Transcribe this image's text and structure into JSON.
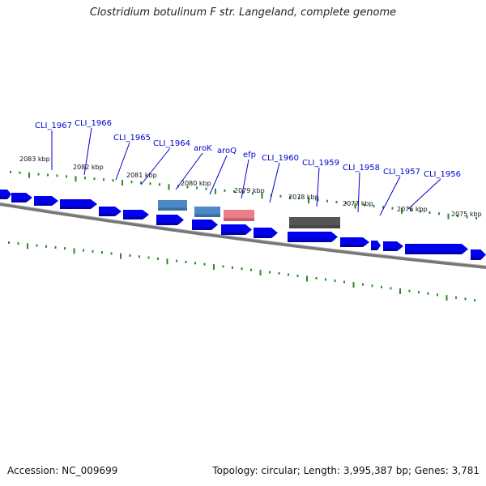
{
  "map": {
    "title": "Clostridium botulinum F str. Langeland, complete genome",
    "accession": "Accession: NC_009699",
    "summary": "Topology: circular; Length: 3,995,387 bp; Genes: 3,781",
    "colors": {
      "cds": "#0000ee",
      "trna": "#4a8ac6",
      "rrna": "#ee7d8a",
      "ncrna": "#555555",
      "backbone": "#777777",
      "ticks": "#2a8a2a",
      "label": "#0000cc"
    },
    "kbp_labels": [
      "2083 kbp",
      "2082 kbp",
      "2081 kbp",
      "2080 kbp",
      "2079 kbp",
      "2078 kbp",
      "2077 kbp",
      "2076 kbp",
      "2075 kbp"
    ],
    "gene_labels": [
      "CLI_1967",
      "CLI_1966",
      "CLI_1965",
      "CLI_1964",
      "aroK",
      "aroQ",
      "efp",
      "CLI_1960",
      "CLI_1959",
      "CLI_1958",
      "CLI_1957",
      "CLI_1956"
    ]
  }
}
